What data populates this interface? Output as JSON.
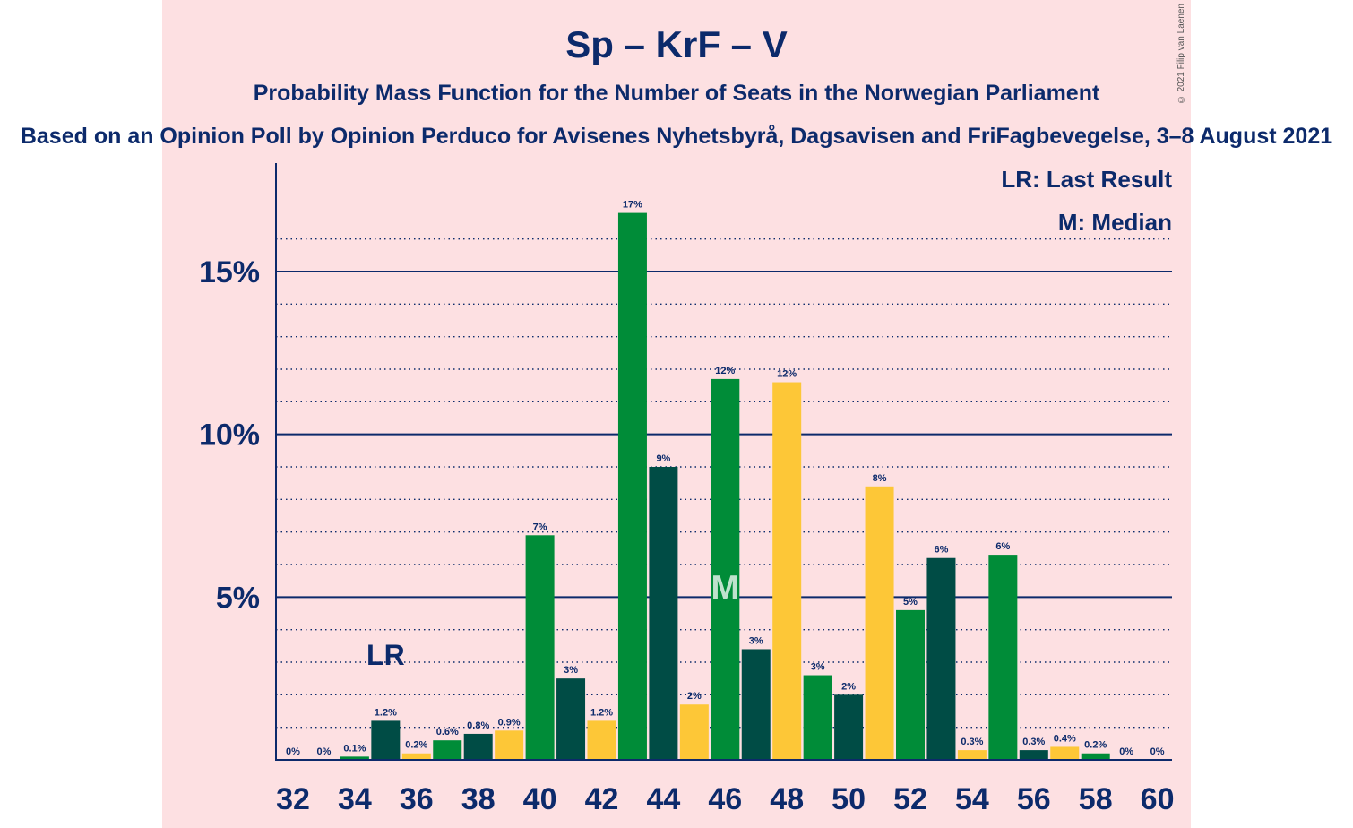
{
  "title": "Sp – KrF – V",
  "subtitle": "Probability Mass Function for the Number of Seats in the Norwegian Parliament",
  "source": "Based on an Opinion Poll by Opinion Perduco for Avisenes Nyhetsbyrå, Dagsavisen and FriFagbevegelse, 3–8 August 2021",
  "copyright": "© 2021 Filip van Laenen",
  "legend": {
    "last_result": "LR: Last Result",
    "median": "M: Median"
  },
  "colors": {
    "dark_green": "#004c45",
    "yellow": "#fdc737",
    "green": "#008c38",
    "axis": "#0c2a6b",
    "background": "#fde0e2"
  },
  "chart_data": {
    "type": "bar",
    "x": [
      32,
      33,
      34,
      35,
      36,
      37,
      38,
      39,
      40,
      41,
      42,
      43,
      44,
      45,
      46,
      47,
      48,
      49,
      50,
      51,
      52,
      53,
      54,
      55,
      56,
      57,
      58,
      59,
      60
    ],
    "values": [
      0,
      0,
      0.1,
      1.2,
      0.2,
      0.6,
      0.8,
      0.9,
      6.9,
      2.5,
      1.2,
      16.8,
      9.0,
      1.7,
      11.7,
      3.4,
      11.6,
      2.6,
      2.0,
      8.4,
      4.6,
      6.2,
      0.3,
      6.3,
      0.3,
      0.4,
      0.2,
      0,
      0
    ],
    "data_labels": [
      "0%",
      "0%",
      "0.1%",
      "1.2%",
      "0.2%",
      "0.6%",
      "0.8%",
      "0.9%",
      "7%",
      "3%",
      "1.2%",
      "17%",
      "9%",
      "2%",
      "12%",
      "3%",
      "12%",
      "3%",
      "2%",
      "8%",
      "5%",
      "6%",
      "0.3%",
      "6%",
      "0.3%",
      "0.4%",
      "0.2%",
      "0%",
      "0%"
    ],
    "x_tick_labels": [
      "32",
      "34",
      "36",
      "38",
      "40",
      "42",
      "44",
      "46",
      "48",
      "50",
      "52",
      "54",
      "56",
      "58",
      "60"
    ],
    "y_tick_labels": [
      {
        "value": 5,
        "label": "5%"
      },
      {
        "value": 10,
        "label": "10%"
      },
      {
        "value": 15,
        "label": "15%"
      }
    ],
    "ylim": [
      0,
      18
    ],
    "last_result": {
      "seat": 35,
      "label": "LR"
    },
    "median": {
      "seat": 46,
      "label": "M"
    },
    "bar_color_cycle": [
      "dark_green",
      "yellow",
      "green"
    ],
    "grid": "dotted every 1%, solid every 5%"
  }
}
